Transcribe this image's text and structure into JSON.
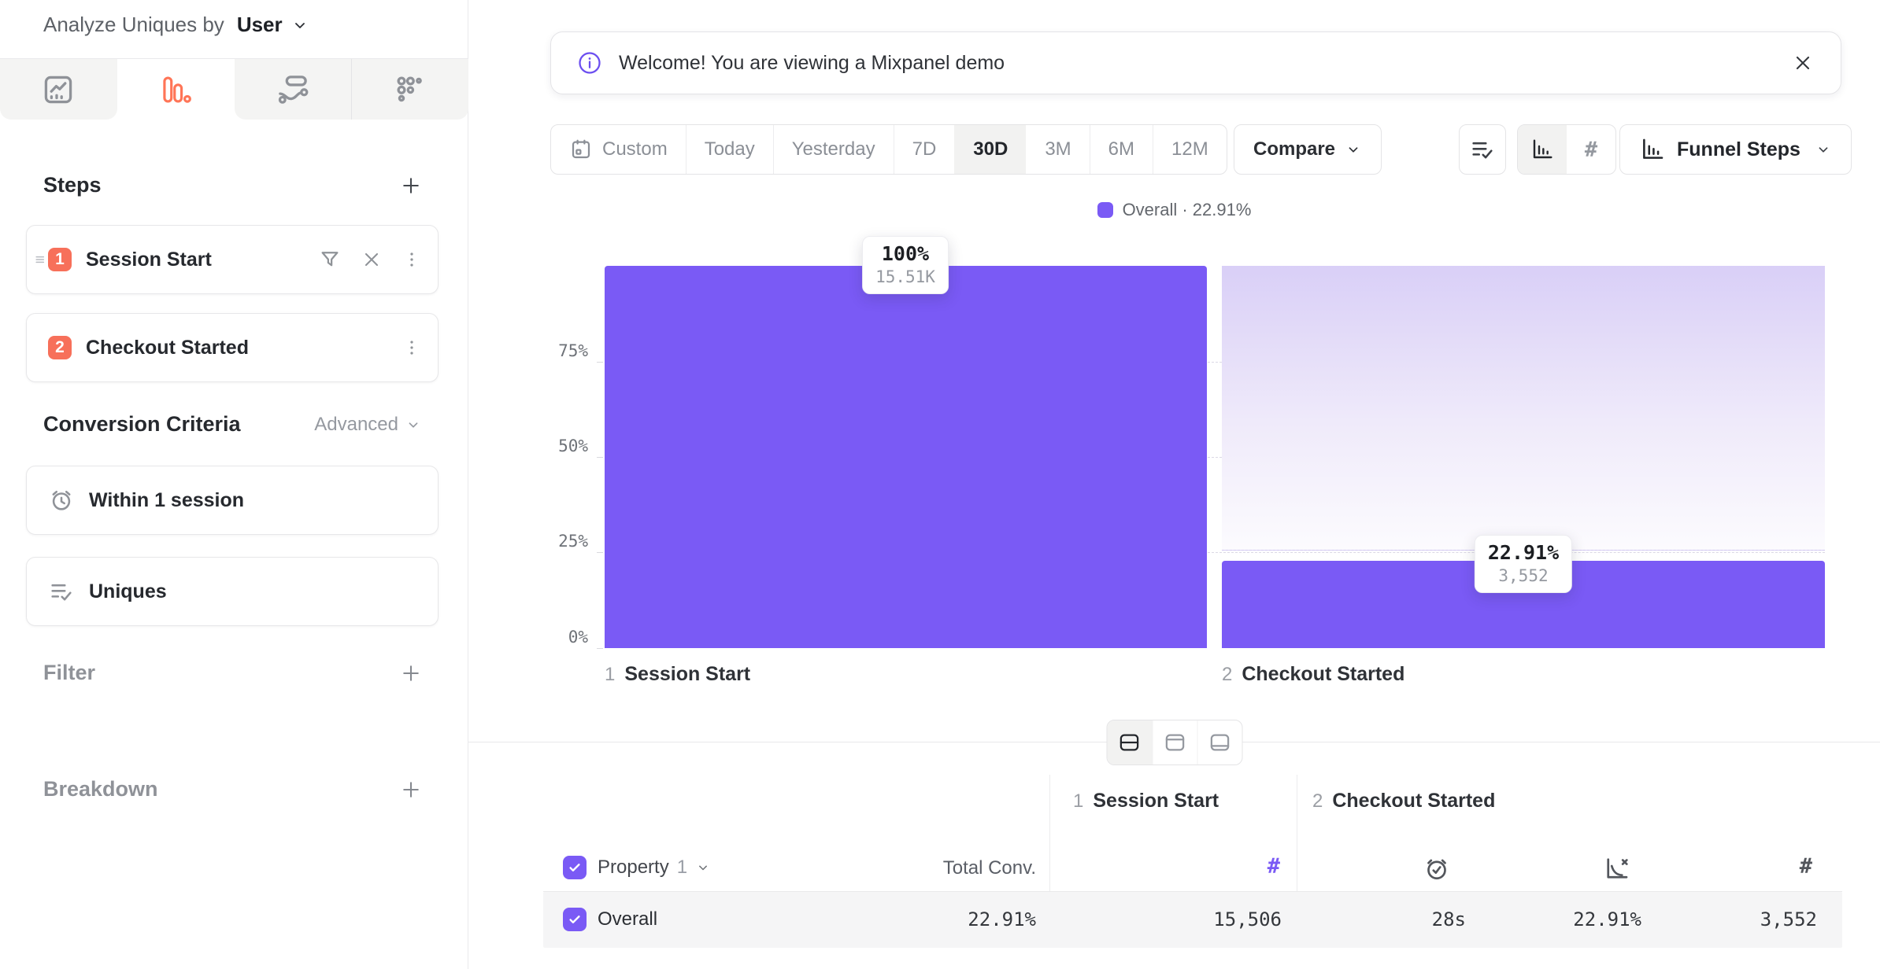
{
  "accent": "#7a5af5",
  "sidebar": {
    "analyze": {
      "label": "Analyze Uniques by",
      "value": "User"
    },
    "steps": {
      "title": "Steps",
      "items": [
        {
          "index": "1",
          "label": "Session Start"
        },
        {
          "index": "2",
          "label": "Checkout Started"
        }
      ]
    },
    "conversion": {
      "title": "Conversion Criteria",
      "advanced_label": "Advanced",
      "criteria": [
        {
          "label": "Within 1 session"
        },
        {
          "label": "Uniques"
        }
      ]
    },
    "filter": {
      "label": "Filter"
    },
    "breakdown": {
      "label": "Breakdown"
    }
  },
  "banner": {
    "message": "Welcome! You are viewing a Mixpanel demo"
  },
  "toolbar": {
    "ranges": [
      "Custom",
      "Today",
      "Yesterday",
      "7D",
      "30D",
      "3M",
      "6M",
      "12M"
    ],
    "active_range": "30D",
    "compare_label": "Compare",
    "view_label": "Funnel Steps"
  },
  "legend": {
    "text": "Overall · 22.91%"
  },
  "chart_data": {
    "type": "bar",
    "title": "Funnel Steps",
    "categories": [
      "Session Start",
      "Checkout Started"
    ],
    "values": [
      100,
      22.91
    ],
    "counts": [
      15506,
      3552
    ],
    "series": [
      {
        "name": "Overall",
        "values": [
          100,
          22.91
        ]
      }
    ],
    "steps": [
      {
        "index": "1",
        "name": "Session Start",
        "pct_label": "100%",
        "count_label": "15.51K"
      },
      {
        "index": "2",
        "name": "Checkout Started",
        "pct_label": "22.91%",
        "count_label": "3,552"
      }
    ],
    "yticks": [
      "0%",
      "25%",
      "50%",
      "75%"
    ],
    "ylim": [
      0,
      100
    ],
    "grid": "dashed-horizontal",
    "legend_position": "top"
  },
  "table": {
    "property": {
      "label": "Property",
      "index": "1"
    },
    "total_conv_label": "Total Conv.",
    "columns": [
      {
        "index": "1",
        "label": "Session Start"
      },
      {
        "index": "2",
        "label": "Checkout Started"
      }
    ],
    "rows": [
      {
        "label": "Overall",
        "total_conv": "22.91%",
        "step1_count": "15,506",
        "step2_avg_time": "28s",
        "step2_conv_rate": "22.91%",
        "step2_count": "3,552"
      }
    ]
  }
}
